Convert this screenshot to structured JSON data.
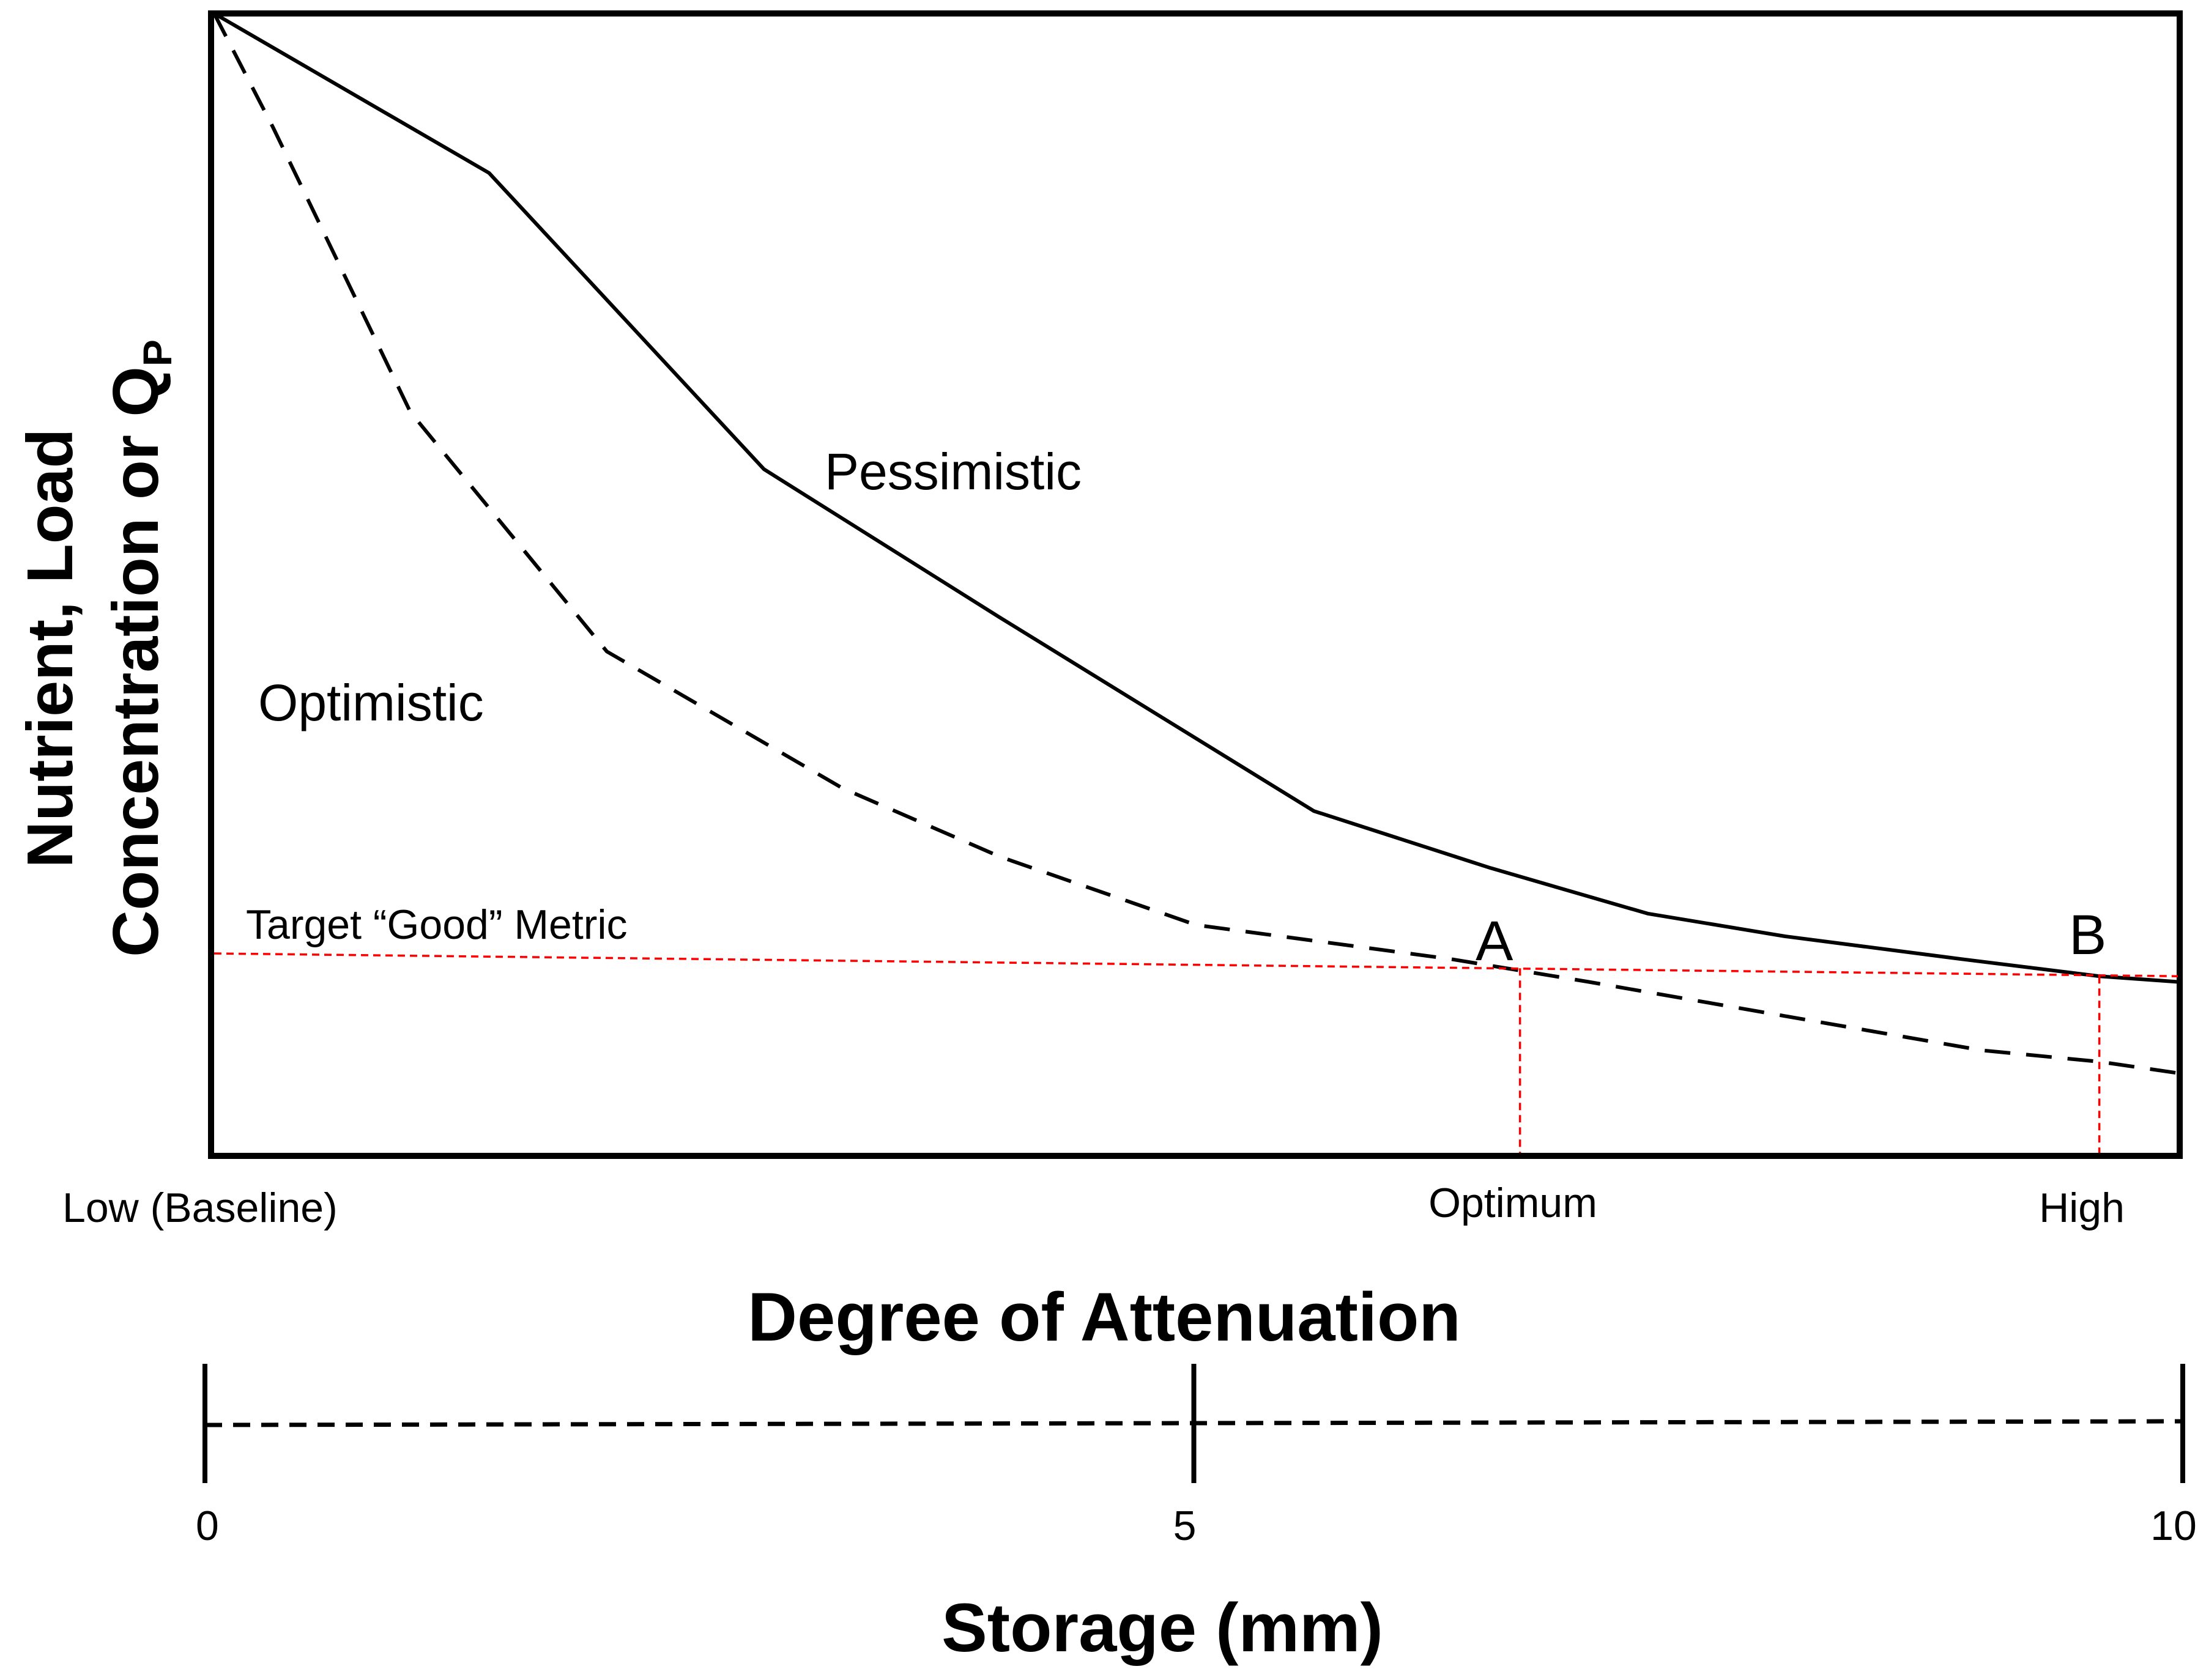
{
  "chart_data": {
    "type": "line",
    "title": "",
    "ylabel_line1": "Nutrient, Load",
    "ylabel_line2_main": "Concentration or Q",
    "ylabel_line2_sub": "P",
    "xlabel": "Degree of Attenuation",
    "x_tick_labels": {
      "low": "Low (Baseline)",
      "optimum": "Optimum",
      "high": "High"
    },
    "secondary_axis": {
      "label": "Storage (mm)",
      "ticks": [
        0,
        5,
        10
      ],
      "tick_labels": [
        "0",
        "5",
        "10"
      ],
      "range": [
        0,
        10
      ]
    },
    "xlim": [
      0,
      10
    ],
    "ylim": [
      0,
      10
    ],
    "grid": false,
    "series": [
      {
        "name": "Pessimistic",
        "style": "solid",
        "color": "#000000",
        "x": [
          0,
          1.4,
          2.8,
          4.0,
          5.6,
          6.5,
          7.3,
          8.0,
          8.9,
          9.6,
          10.0
        ],
        "y": [
          10.0,
          8.6,
          6.0,
          4.7,
          3.0,
          2.5,
          2.1,
          1.9,
          1.7,
          1.55,
          1.5
        ]
      },
      {
        "name": "Optimistic",
        "style": "dashed",
        "color": "#000000",
        "x": [
          0,
          0.3,
          1.0,
          2.0,
          3.2,
          4.0,
          5.0,
          6.3,
          7.0,
          8.0,
          9.0,
          9.6,
          10.0
        ],
        "y": [
          10.0,
          9.0,
          6.5,
          4.4,
          3.2,
          2.6,
          2.0,
          1.7,
          1.5,
          1.2,
          0.9,
          0.8,
          0.7
        ]
      }
    ],
    "target": {
      "label": "Target “Good” Metric",
      "color": "#ff0000",
      "style": "dotted",
      "x": [
        0,
        10
      ],
      "y": [
        1.75,
        1.55
      ]
    },
    "points": [
      {
        "label": "A",
        "x": 6.65,
        "y": 1.62
      },
      {
        "label": "B",
        "x": 9.6,
        "y": 1.55
      }
    ]
  }
}
